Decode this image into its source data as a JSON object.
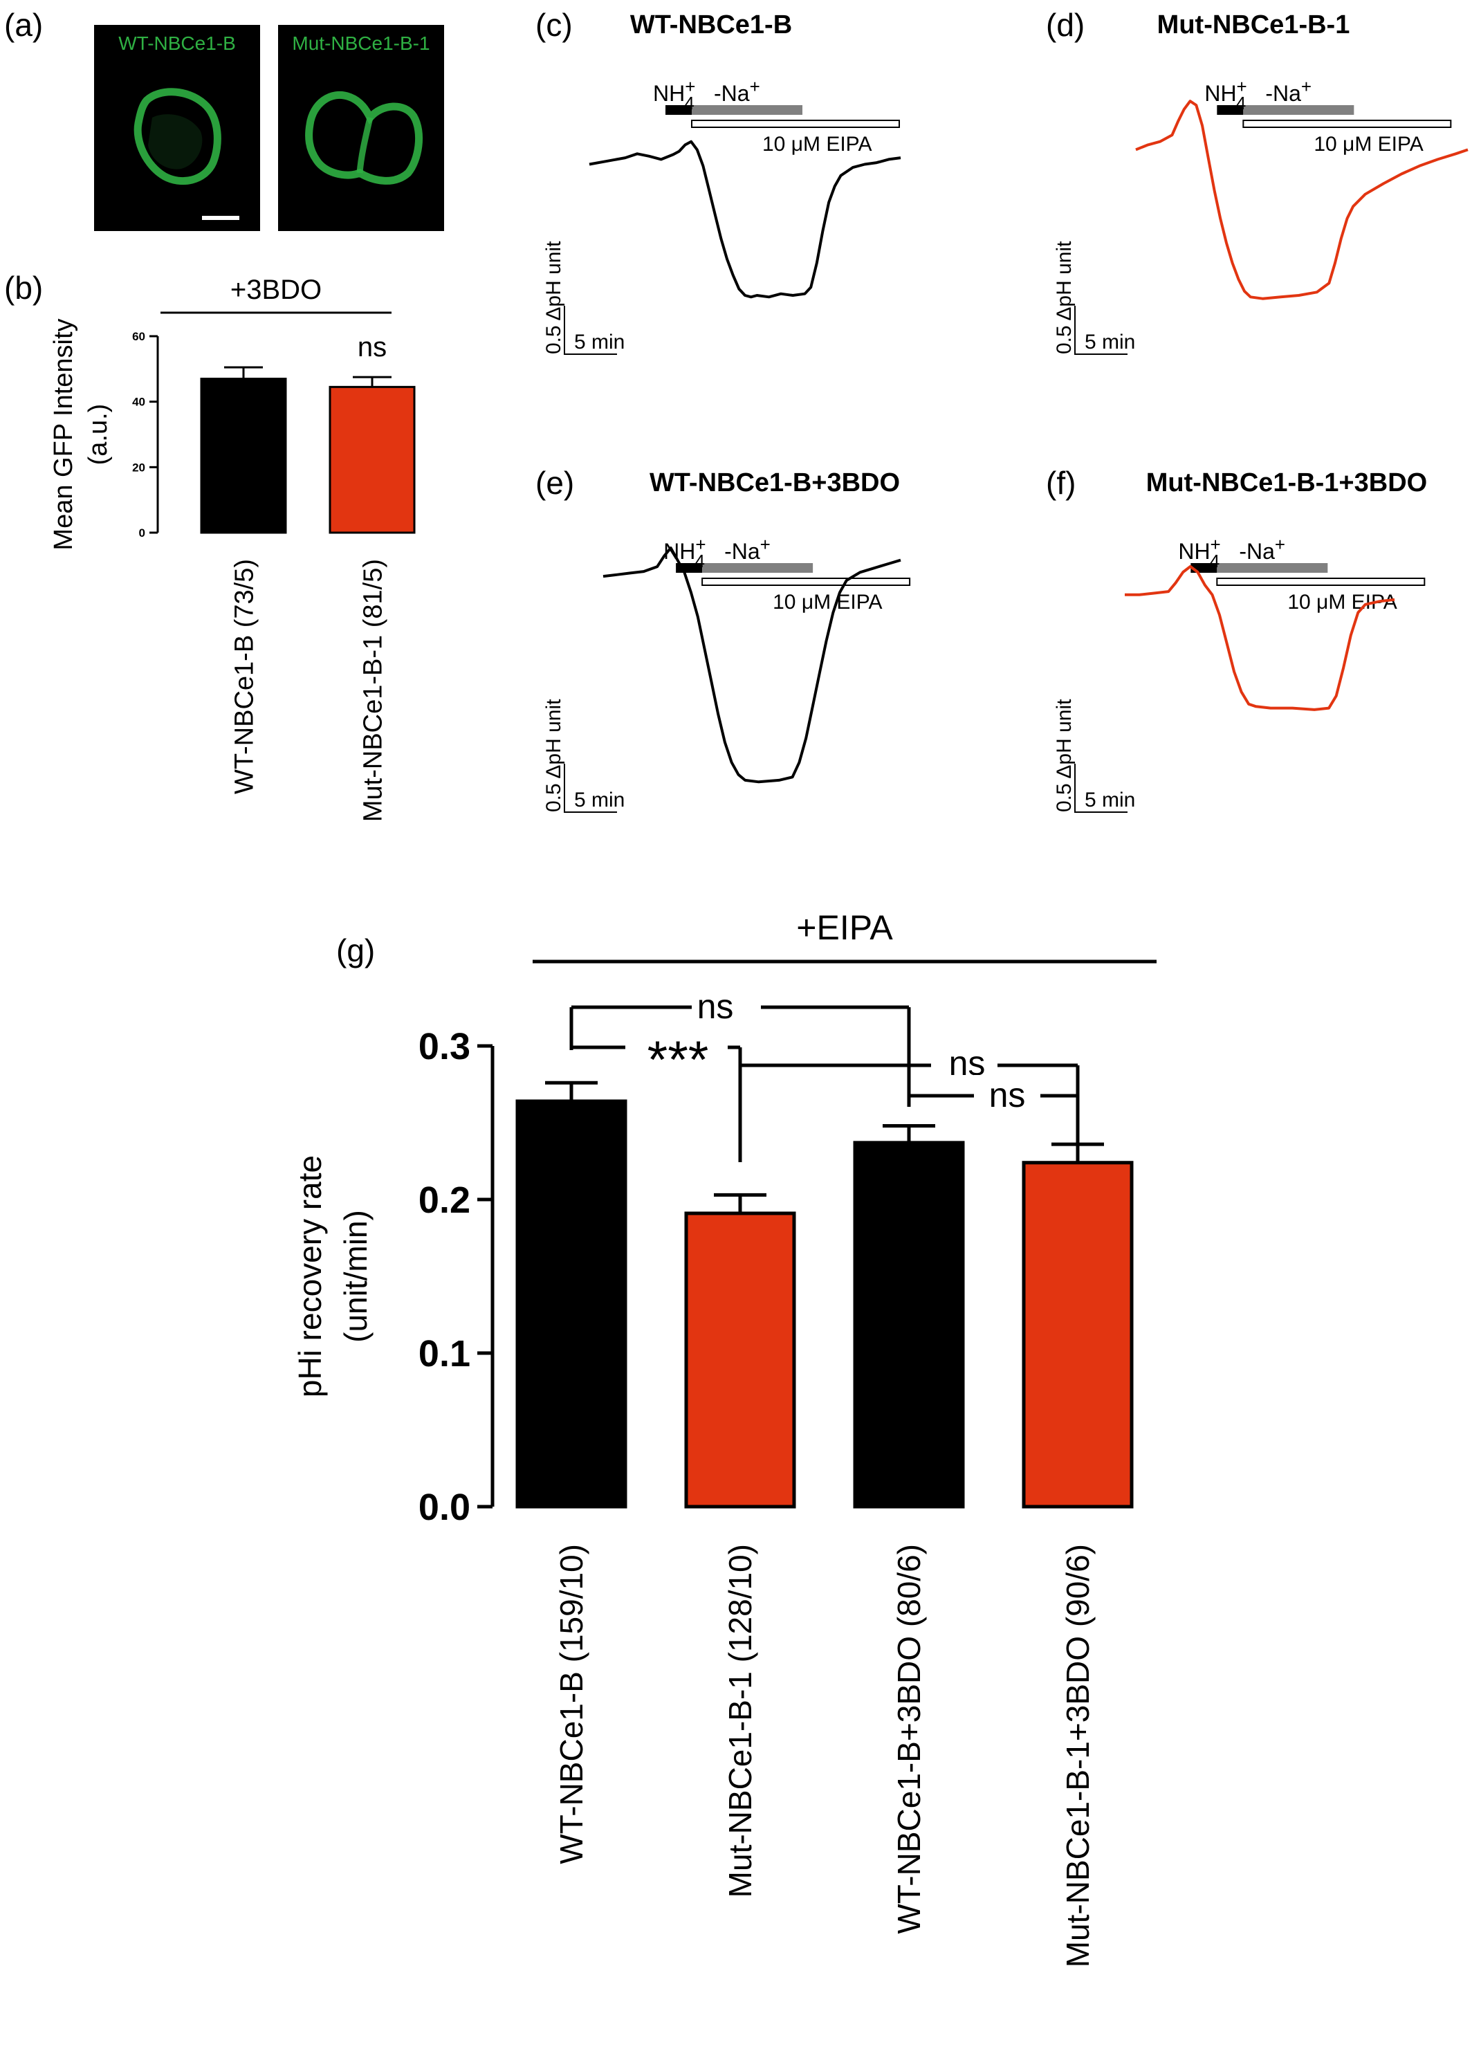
{
  "colors": {
    "wt": "#000000",
    "mut": "#e23511",
    "gfp": "#2fb043",
    "grey": "#808080"
  },
  "panel_a": {
    "letter": "(a)",
    "image_labels": [
      "WT-NBCe1-B",
      "Mut-NBCe1-B-1"
    ]
  },
  "panel_b": {
    "letter": "(b)"
  },
  "trace_labels": {
    "nh4": "NH4+",
    "nh4_base": "NH",
    "nh4_plus": "+",
    "nh4_sub": "4",
    "na": "-Na",
    "na_plus": "+",
    "eipa": "10 μM EIPA",
    "scale_y": "0.5 ΔpH unit",
    "scale_x": "5 min"
  },
  "trace_panels": [
    {
      "letter": "(c)",
      "title": "WT-NBCe1-B",
      "color_key": "wt",
      "trace": [
        [
          0,
          0.62
        ],
        [
          3,
          0.66
        ],
        [
          6,
          0.7
        ],
        [
          8,
          0.75
        ],
        [
          10,
          0.72
        ],
        [
          12,
          0.68
        ],
        [
          14,
          0.74
        ],
        [
          15,
          0.78
        ],
        [
          16,
          0.86
        ],
        [
          17,
          0.9
        ],
        [
          18,
          0.8
        ],
        [
          19,
          0.6
        ],
        [
          20,
          0.3
        ],
        [
          21,
          0.0
        ],
        [
          22,
          -0.3
        ],
        [
          23,
          -0.55
        ],
        [
          24,
          -0.75
        ],
        [
          25,
          -0.92
        ],
        [
          26,
          -1.0
        ],
        [
          27,
          -1.02
        ],
        [
          28,
          -1.0
        ],
        [
          30,
          -1.02
        ],
        [
          32,
          -0.98
        ],
        [
          34,
          -1.0
        ],
        [
          36,
          -0.98
        ],
        [
          37,
          -0.9
        ],
        [
          38,
          -0.6
        ],
        [
          39,
          -0.2
        ],
        [
          40,
          0.15
        ],
        [
          41,
          0.35
        ],
        [
          42,
          0.48
        ],
        [
          44,
          0.58
        ],
        [
          46,
          0.62
        ],
        [
          48,
          0.64
        ],
        [
          50,
          0.68
        ],
        [
          52,
          0.7
        ]
      ]
    },
    {
      "letter": "(d)",
      "title": "Mut-NBCe1-B-1",
      "color_key": "mut",
      "trace": [
        [
          0,
          0.8
        ],
        [
          2,
          0.86
        ],
        [
          4,
          0.9
        ],
        [
          6,
          0.98
        ],
        [
          7,
          1.15
        ],
        [
          8,
          1.3
        ],
        [
          9,
          1.4
        ],
        [
          10,
          1.35
        ],
        [
          11,
          1.1
        ],
        [
          12,
          0.7
        ],
        [
          13,
          0.3
        ],
        [
          14,
          -0.05
        ],
        [
          15,
          -0.35
        ],
        [
          16,
          -0.6
        ],
        [
          17,
          -0.8
        ],
        [
          18,
          -0.95
        ],
        [
          19,
          -1.02
        ],
        [
          21,
          -1.04
        ],
        [
          24,
          -1.02
        ],
        [
          27,
          -1.0
        ],
        [
          30,
          -0.96
        ],
        [
          32,
          -0.85
        ],
        [
          33,
          -0.6
        ],
        [
          34,
          -0.3
        ],
        [
          35,
          -0.05
        ],
        [
          36,
          0.1
        ],
        [
          38,
          0.25
        ],
        [
          41,
          0.38
        ],
        [
          44,
          0.5
        ],
        [
          47,
          0.6
        ],
        [
          50,
          0.68
        ],
        [
          53,
          0.75
        ],
        [
          55,
          0.8
        ]
      ]
    },
    {
      "letter": "(e)",
      "title": "WT-NBCe1-B+3BDO",
      "color_key": "wt",
      "trace": [
        [
          0,
          0.7
        ],
        [
          2,
          0.72
        ],
        [
          4,
          0.74
        ],
        [
          6,
          0.76
        ],
        [
          8,
          0.82
        ],
        [
          9,
          0.95
        ],
        [
          10,
          1.05
        ],
        [
          11,
          0.9
        ],
        [
          12,
          0.75
        ],
        [
          13,
          0.5
        ],
        [
          14,
          0.2
        ],
        [
          15,
          -0.2
        ],
        [
          16,
          -0.6
        ],
        [
          17,
          -1.0
        ],
        [
          18,
          -1.35
        ],
        [
          19,
          -1.6
        ],
        [
          20,
          -1.75
        ],
        [
          21,
          -1.82
        ],
        [
          23,
          -1.84
        ],
        [
          26,
          -1.82
        ],
        [
          28,
          -1.78
        ],
        [
          29,
          -1.6
        ],
        [
          30,
          -1.3
        ],
        [
          31,
          -0.9
        ],
        [
          32,
          -0.5
        ],
        [
          33,
          -0.1
        ],
        [
          34,
          0.25
        ],
        [
          35,
          0.5
        ],
        [
          36,
          0.65
        ],
        [
          38,
          0.75
        ],
        [
          40,
          0.8
        ],
        [
          42,
          0.85
        ],
        [
          44,
          0.9
        ]
      ]
    },
    {
      "letter": "(f)",
      "title": "Mut-NBCe1-B-1+3BDO",
      "color_key": "mut",
      "trace": [
        [
          0,
          0.6
        ],
        [
          2,
          0.6
        ],
        [
          4,
          0.62
        ],
        [
          6,
          0.64
        ],
        [
          7,
          0.75
        ],
        [
          8,
          0.88
        ],
        [
          9,
          0.95
        ],
        [
          10,
          0.88
        ],
        [
          11,
          0.72
        ],
        [
          12,
          0.6
        ],
        [
          13,
          0.35
        ],
        [
          14,
          0.0
        ],
        [
          15,
          -0.35
        ],
        [
          16,
          -0.6
        ],
        [
          17,
          -0.75
        ],
        [
          18,
          -0.78
        ],
        [
          20,
          -0.8
        ],
        [
          23,
          -0.8
        ],
        [
          26,
          -0.82
        ],
        [
          28,
          -0.8
        ],
        [
          29,
          -0.65
        ],
        [
          30,
          -0.3
        ],
        [
          31,
          0.1
        ],
        [
          32,
          0.38
        ],
        [
          33,
          0.48
        ],
        [
          35,
          0.52
        ],
        [
          37,
          0.54
        ]
      ]
    }
  ],
  "chart_data": [
    {
      "type": "bar",
      "panel": "(b)",
      "bracket_label": "+3BDO",
      "ylabel": "Mean GFP Intensity (a.u.)",
      "ylim": [
        0,
        60
      ],
      "yticks": [
        "0",
        "20",
        "40",
        "60"
      ],
      "categories": [
        "WT-NBCe1-B (73/5)",
        "Mut-NBCe1-B-1 (81/5)"
      ],
      "values": [
        47,
        44.5
      ],
      "errors": [
        3.5,
        3
      ],
      "colors": [
        "#000000",
        "#e23511"
      ],
      "annotations": [
        "ns"
      ]
    },
    {
      "type": "bar",
      "panel": "(g)",
      "bracket_label": "+EIPA",
      "ylabel": "pHi recovery rate (unit/min)",
      "ylim": [
        0,
        0.3
      ],
      "yticks": [
        "0.0",
        "0.1",
        "0.2",
        "0.3"
      ],
      "categories": [
        "WT-NBCe1-B (159/10)",
        "Mut-NBCe1-B-1 (128/10)",
        "WT-NBCe1-B+3BDO (80/6)",
        "Mut-NBCe1-B-1+3BDO (90/6)"
      ],
      "values": [
        0.264,
        0.191,
        0.237,
        0.224
      ],
      "errors": [
        0.012,
        0.012,
        0.011,
        0.012
      ],
      "colors": [
        "#000000",
        "#e23511",
        "#000000",
        "#e23511"
      ],
      "significance": [
        {
          "pair": [
            1,
            3
          ],
          "label": "ns"
        },
        {
          "pair": [
            1,
            2
          ],
          "label": "***"
        },
        {
          "pair": [
            2,
            4
          ],
          "label": "ns"
        },
        {
          "pair": [
            3,
            4
          ],
          "label": "ns"
        }
      ]
    }
  ]
}
